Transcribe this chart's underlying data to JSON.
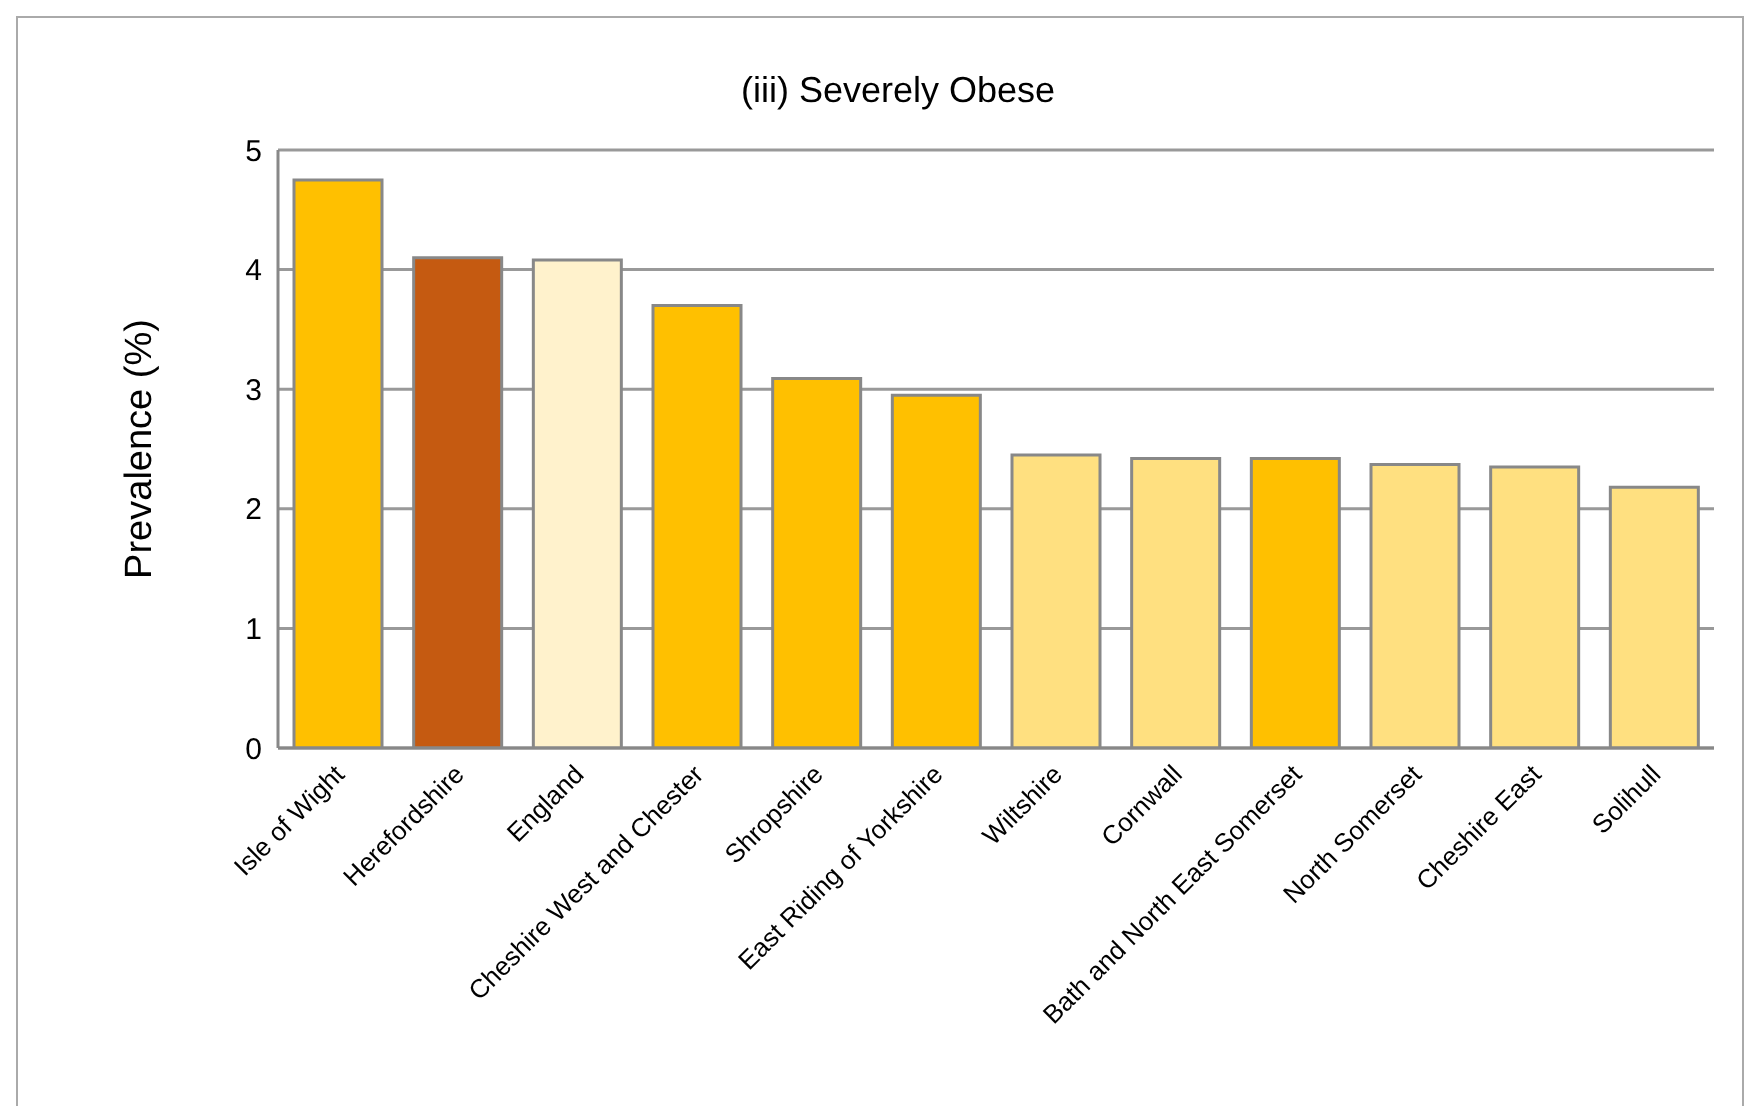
{
  "chart_data": {
    "type": "bar",
    "title": "(iii) Severely Obese",
    "ylabel": "Prevalence (%)",
    "categories": [
      "Isle of Wight",
      "Herefordshire",
      "England",
      "Cheshire West and Chester",
      "Shropshire",
      "East Riding of Yorkshire",
      "Wiltshire",
      "Cornwall",
      "Bath and North East Somerset",
      "North Somerset",
      "Cheshire East",
      "Solihull"
    ],
    "values": [
      4.75,
      4.1,
      4.08,
      3.7,
      3.09,
      2.95,
      2.45,
      2.42,
      2.42,
      2.37,
      2.35,
      2.18
    ],
    "colors": [
      "#ffc000",
      "#c55a11",
      "#fff2cc",
      "#ffc000",
      "#ffc000",
      "#ffc000",
      "#ffe080",
      "#ffe080",
      "#ffc000",
      "#ffe080",
      "#ffe080",
      "#ffe080"
    ],
    "ylim": [
      0,
      5
    ],
    "yticks": [
      0,
      1,
      2,
      3,
      4,
      5
    ],
    "grid": "y",
    "legend": false
  }
}
